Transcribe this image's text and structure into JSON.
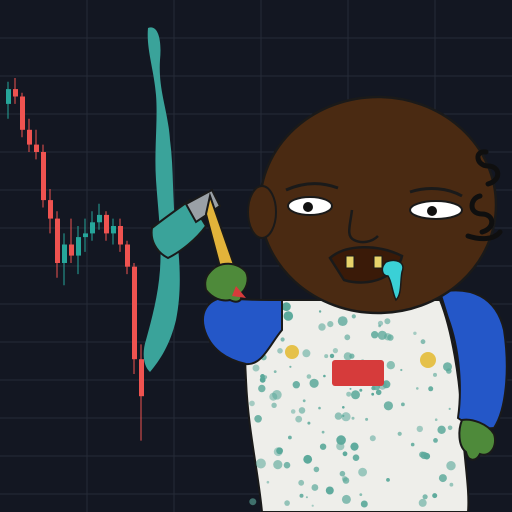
{
  "colors": {
    "background": "#131722",
    "grid": "#262b38",
    "candle_up": "#26a69a",
    "candle_down": "#ef5350",
    "paint": "#3aa39a",
    "skin": "#4a2a12",
    "shirt": "#2457c8",
    "apron": "#eeeeea",
    "apron_splatter": "#5aa89a",
    "glove": "#4e8a3a"
  },
  "chart_data": {
    "type": "candlestick",
    "grid": true,
    "trend": "down",
    "candles": [
      {
        "o": 0.93,
        "h": 0.99,
        "l": 0.89,
        "c": 0.97
      },
      {
        "o": 0.97,
        "h": 1.0,
        "l": 0.93,
        "c": 0.95
      },
      {
        "o": 0.95,
        "h": 0.96,
        "l": 0.84,
        "c": 0.86
      },
      {
        "o": 0.86,
        "h": 0.89,
        "l": 0.8,
        "c": 0.82
      },
      {
        "o": 0.82,
        "h": 0.86,
        "l": 0.78,
        "c": 0.8
      },
      {
        "o": 0.8,
        "h": 0.82,
        "l": 0.65,
        "c": 0.67
      },
      {
        "o": 0.67,
        "h": 0.7,
        "l": 0.58,
        "c": 0.62
      },
      {
        "o": 0.62,
        "h": 0.64,
        "l": 0.46,
        "c": 0.5
      },
      {
        "o": 0.5,
        "h": 0.58,
        "l": 0.44,
        "c": 0.55
      },
      {
        "o": 0.55,
        "h": 0.62,
        "l": 0.5,
        "c": 0.52
      },
      {
        "o": 0.52,
        "h": 0.6,
        "l": 0.47,
        "c": 0.57
      },
      {
        "o": 0.57,
        "h": 0.62,
        "l": 0.53,
        "c": 0.58
      },
      {
        "o": 0.58,
        "h": 0.64,
        "l": 0.56,
        "c": 0.61
      },
      {
        "o": 0.61,
        "h": 0.66,
        "l": 0.59,
        "c": 0.63
      },
      {
        "o": 0.63,
        "h": 0.64,
        "l": 0.56,
        "c": 0.58
      },
      {
        "o": 0.58,
        "h": 0.62,
        "l": 0.55,
        "c": 0.6
      },
      {
        "o": 0.6,
        "h": 0.62,
        "l": 0.53,
        "c": 0.55
      },
      {
        "o": 0.55,
        "h": 0.56,
        "l": 0.47,
        "c": 0.49
      },
      {
        "o": 0.49,
        "h": 0.5,
        "l": 0.2,
        "c": 0.24
      },
      {
        "o": 0.24,
        "h": 0.28,
        "l": 0.02,
        "c": 0.14
      }
    ]
  }
}
